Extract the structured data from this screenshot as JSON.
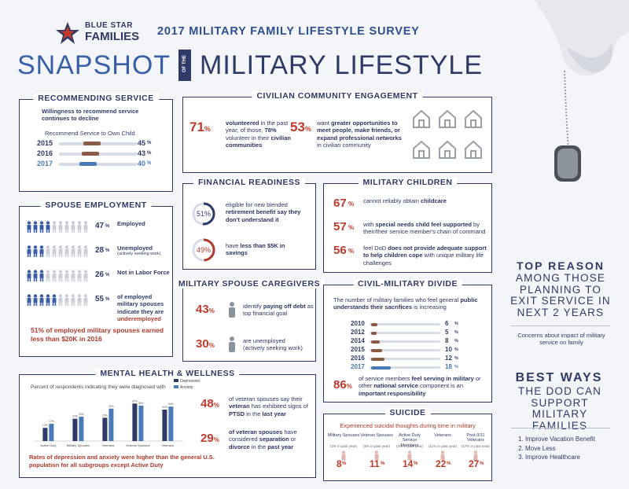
{
  "header": {
    "brand_line1": "BLUE STAR",
    "brand_line2": "FAMILIES",
    "survey_title": "2017 MILITARY FAMILY LIFESTYLE SURVEY",
    "snapshot": "SNAPSHOT",
    "of_the": "OF THE",
    "military_lifestyle": "MILITARY LIFESTYLE"
  },
  "recommending": {
    "title": "RECOMMENDING SERVICE",
    "subtitle": "Willingness to recommend service continues to decline",
    "label": "Recommend Service to Own Child",
    "rows": [
      {
        "year": "2015",
        "value": "45",
        "unit": "%",
        "fraction": 0.45
      },
      {
        "year": "2016",
        "value": "43",
        "unit": "%",
        "fraction": 0.43
      },
      {
        "year": "2017",
        "value": "40",
        "unit": "%",
        "fraction": 0.4
      }
    ]
  },
  "civilian": {
    "title": "CIVILIAN COMMUNITY ENGAGEMENT",
    "stat1_value": "71",
    "stat1_unit": "%",
    "stat1_text_a": "volunteered",
    "stat1_text_b": " in the past year; of those, ",
    "stat1_text_c": "78%",
    "stat1_text_d": " volunteer in their ",
    "stat1_text_e": "civilian communities",
    "stat2_value": "53",
    "stat2_unit": "%",
    "stat2_text_a": "want ",
    "stat2_text_b": "greater opportunities to meet people, make friends, or expand professional networks",
    "stat2_text_c": " in civilian community"
  },
  "spouse_emp": {
    "title": "SPOUSE EMPLOYMENT",
    "rows": [
      {
        "value": "47",
        "unit": "%",
        "label": "Employed",
        "sub": "",
        "filled": 4
      },
      {
        "value": "28",
        "unit": "%",
        "label": "Unemployed",
        "sub": "(actively seeking work)",
        "filled": 3
      },
      {
        "value": "26",
        "unit": "%",
        "label": "Not in Labor Force",
        "sub": "",
        "filled": 3
      },
      {
        "value": "55",
        "unit": "%",
        "label": "of employed military spouses indicate they are ",
        "label_b": "underemployed",
        "sub": "",
        "filled": 5
      }
    ],
    "footer": "51% of employed military spouses earned less than $20K in 2016"
  },
  "financial": {
    "title": "FINANCIAL READINESS",
    "stat1_value": "51%",
    "stat1_fraction": 0.51,
    "stat1_text_a": "eligible for new blended ",
    "stat1_text_b": "retirement benefit say they don't understand it",
    "stat2_value": "49%",
    "stat2_fraction": 0.49,
    "stat2_text_a": "have ",
    "stat2_text_b": "less than $5K in savings"
  },
  "children": {
    "title": "MILITARY CHILDREN",
    "rows": [
      {
        "value": "67",
        "unit": "%",
        "a": "cannot reliably obtain ",
        "b": "childcare",
        "c": ""
      },
      {
        "value": "57",
        "unit": "%",
        "a": "with ",
        "b": "special needs child feel supported",
        "c": " by their/their service member's chain of command"
      },
      {
        "value": "56",
        "unit": "%",
        "a": "feel DoD ",
        "b": "does not provide adequate support to help children cope",
        "c": " with unique military life challenges"
      }
    ]
  },
  "caregivers": {
    "title": "MILITARY SPOUSE CAREGIVERS",
    "stat1_value": "43",
    "stat1_unit": "%",
    "stat1_a": "identify ",
    "stat1_b": "paying off debt",
    "stat1_c": " as top financial goal",
    "stat2_value": "30",
    "stat2_unit": "%",
    "stat2_a": "are unemployed",
    "stat2_b": "(actively seeking work)"
  },
  "civmil": {
    "title": "CIVIL-MILITARY DIVIDE",
    "intro_a": "The number of military families who feel general ",
    "intro_b": "public understands their sacrifices",
    "intro_c": " is increasing",
    "rows": [
      {
        "year": "2010",
        "value": "6",
        "unit": "%",
        "fraction": 0.06
      },
      {
        "year": "2012",
        "value": "5",
        "unit": "%",
        "fraction": 0.05
      },
      {
        "year": "2014",
        "value": "8",
        "unit": "%",
        "fraction": 0.08
      },
      {
        "year": "2015",
        "value": "10",
        "unit": "%",
        "fraction": 0.1
      },
      {
        "year": "2016",
        "value": "12",
        "unit": "%",
        "fraction": 0.12
      },
      {
        "year": "2017",
        "value": "18",
        "unit": "%",
        "fraction": 0.18
      }
    ],
    "stat_value": "86",
    "stat_unit": "%",
    "stat_a": "of service members ",
    "stat_b": "feel serving in military",
    "stat_c": " or other ",
    "stat_d": "national service",
    "stat_e": " component is an ",
    "stat_f": "important responsibility"
  },
  "mental": {
    "title": "MENTAL HEALTH & WELLNESS",
    "chart_caption": "Percent of respondents indicating they were diagnosed with",
    "legend_depression": "Depression",
    "legend_anxiety": "Anxiety",
    "stat1_value": "48",
    "stat1_unit": "%",
    "stat1_a": "of veteran spouses say their ",
    "stat1_b": "veteran",
    "stat1_c": " has exhibited signs of ",
    "stat1_d": "PTSD",
    "stat1_e": " in the ",
    "stat1_f": "last year",
    "stat2_value": "29",
    "stat2_unit": "%",
    "stat2_a": "of veteran spouses",
    "stat2_b": " have considered ",
    "stat2_c": "separation",
    "stat2_d": " or ",
    "stat2_e": "divorce",
    "stat2_f": " in the ",
    "stat2_g": "past year",
    "footer": "Rates of depression and anxiety were higher than the general U.S. population for all subgroups except Active Duty"
  },
  "chart_data": {
    "type": "bar",
    "title": "",
    "categories": [
      "Active Duty",
      "Military Spouses",
      "Veterans",
      "Veteran Spouses",
      "Veterans"
    ],
    "series": [
      {
        "name": "Depression",
        "values": [
          13,
          22,
          23,
          37,
          31
        ],
        "color": "#2f3a66"
      },
      {
        "name": "Anxiety",
        "values": [
          17,
          24,
          32,
          35,
          34
        ],
        "color": "#4a7ab8"
      }
    ],
    "ylim": [
      0,
      45
    ],
    "legend": "top-right"
  },
  "suicide": {
    "title": "SUICIDE",
    "caption": "Experienced suicidal thoughts during time in military",
    "groups": [
      {
        "name": "Military Spouses",
        "sub": "(3% in past year)",
        "value": "8",
        "unit": "%"
      },
      {
        "name": "Veteran Spouses",
        "sub": "(6% in past year)",
        "value": "11",
        "unit": "%"
      },
      {
        "name": "Active Duty Service Members",
        "sub": "(3% in past year)",
        "value": "14",
        "unit": "%"
      },
      {
        "name": "Veterans",
        "sub": "(11% in past year)",
        "value": "22",
        "unit": "%"
      },
      {
        "name": "Post-9/11 Veterans",
        "sub": "(17% in past year)",
        "value": "27",
        "unit": "%"
      }
    ]
  },
  "right": {
    "top_reason_title": "TOP REASON",
    "top_reason_sub": "AMONG THOSE PLANNING TO EXIT SERVICE IN NEXT 2 YEARS",
    "top_reason_answer": "Concerns about impact of military service on family",
    "best_ways_title": "BEST WAYS",
    "best_ways_sub": "THE DOD CAN SUPPORT MILITARY FAMILIES",
    "ways": [
      "Improve Vacation Benefit",
      "Move Less",
      "Improve Healthcare"
    ]
  },
  "colors": {
    "navy": "#2f3a66",
    "red": "#b03a2e",
    "blue": "#4a7ab8",
    "gray": "#c9ced9",
    "brown": "#8a5a44"
  }
}
